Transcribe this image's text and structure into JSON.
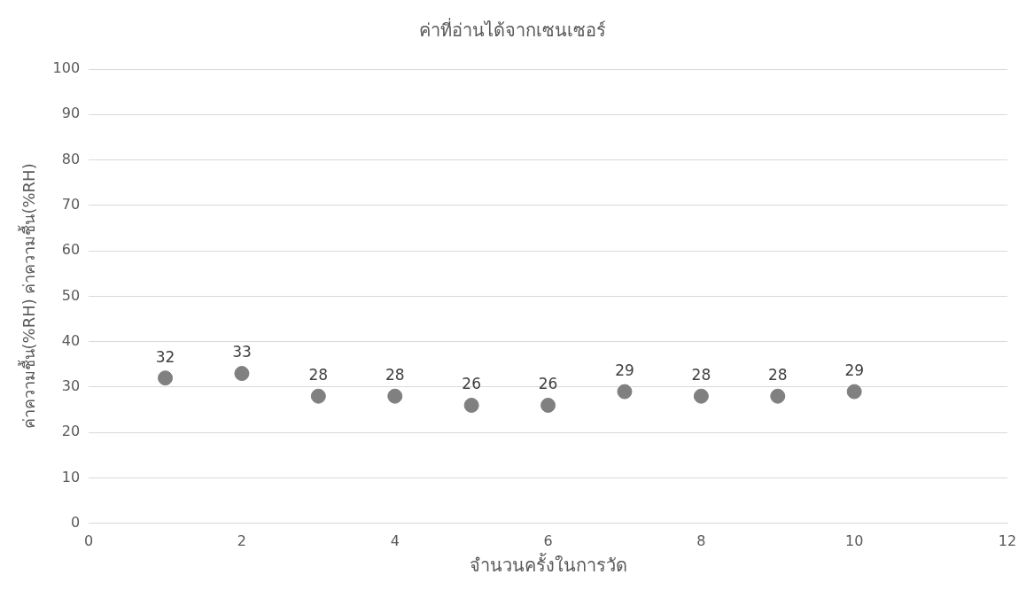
{
  "chart_data": {
    "type": "scatter",
    "title": "ค่าที่อ่านได้จากเซนเซอร์",
    "xlabel": "จำนวนครั้งในการวัด",
    "ylabel": "ค่าความชื้น(%RH) ค่าความชื้น(%RH)",
    "x": [
      1,
      2,
      3,
      4,
      5,
      6,
      7,
      8,
      9,
      10
    ],
    "series": [
      {
        "color": "#808080",
        "values": [
          32,
          33,
          28,
          28,
          26,
          26,
          29,
          28,
          28,
          29
        ]
      }
    ],
    "xlim": [
      0,
      12
    ],
    "xticks": [
      0,
      2,
      4,
      6,
      8,
      10,
      12
    ],
    "ylim": [
      0,
      100
    ],
    "yticks": [
      0,
      10,
      20,
      30,
      40,
      50,
      60,
      70,
      80,
      90,
      100
    ],
    "grid": "y",
    "marker": "circle",
    "data_labels": true,
    "legend": false
  }
}
